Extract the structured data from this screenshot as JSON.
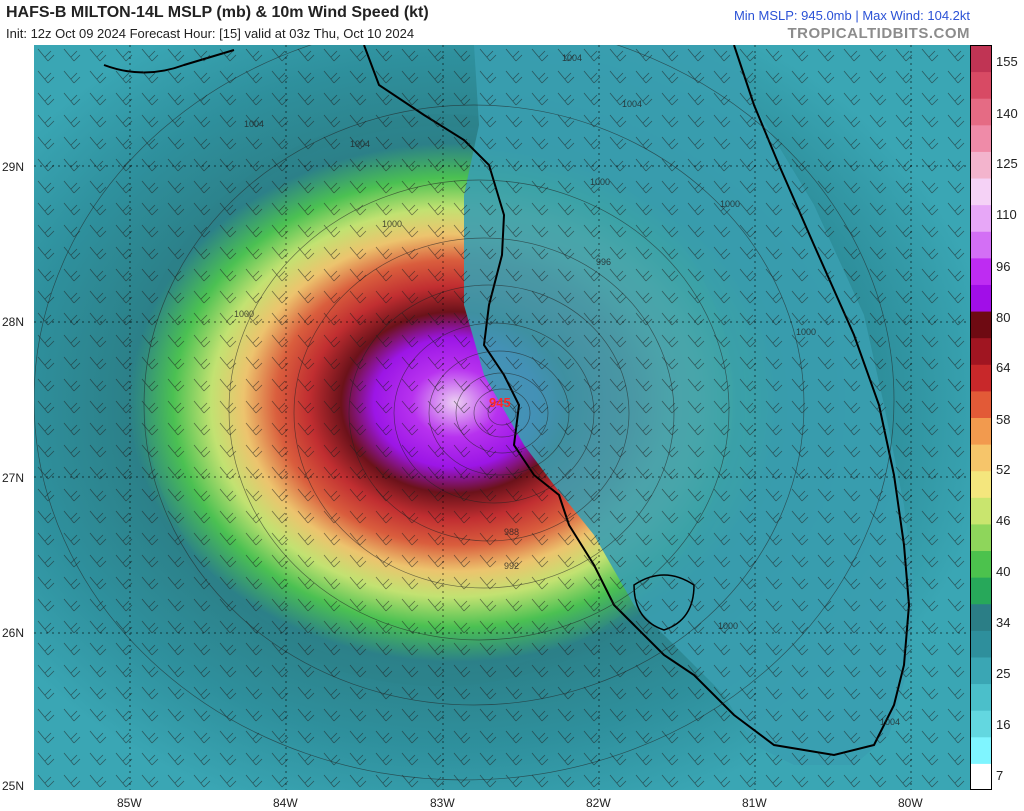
{
  "header": {
    "title": "HAFS-B MILTON-14L MSLP (mb) & 10m Wind Speed (kt)",
    "subtitle": "Init: 12z Oct 09 2024   Forecast Hour: [15]   valid at 03z Thu, Oct 10 2024",
    "stats": "Min MSLP: 945.0mb | Max Wind: 104.2kt",
    "site": "TROPICALTIDBITS.COM"
  },
  "map": {
    "center_pressure_label": "945",
    "pressure_labels": [
      "1004",
      "1004",
      "1004",
      "1004",
      "1000",
      "1000",
      "1000",
      "1000",
      "1000",
      "996",
      "992",
      "988",
      "1000",
      "1004"
    ],
    "lat_labels": [
      "29N",
      "28N",
      "27N",
      "26N",
      "25N"
    ],
    "lon_labels": [
      "85W",
      "84W",
      "83W",
      "82W",
      "81W",
      "80W"
    ]
  },
  "colorbar": {
    "labels": [
      "155",
      "140",
      "125",
      "110",
      "96",
      "80",
      "64",
      "58",
      "52",
      "46",
      "40",
      "34",
      "25",
      "16",
      "7"
    ],
    "colors": [
      "#ffffff",
      "#7ff5ff",
      "#63d7e0",
      "#4bbfca",
      "#3aa6b4",
      "#2e8f9c",
      "#2b7e86",
      "#27a85a",
      "#4cc24d",
      "#8ed65b",
      "#c9e56e",
      "#f4e67d",
      "#f6c56a",
      "#f29a4e",
      "#e25a37",
      "#c8282a",
      "#a01521",
      "#6e0a12",
      "#a10ee8",
      "#be2cf2",
      "#d36ff5",
      "#e7a7f7",
      "#f5d2f6",
      "#f3b4cd",
      "#ef8ba8",
      "#e56b84",
      "#d84a64",
      "#c03454"
    ]
  }
}
